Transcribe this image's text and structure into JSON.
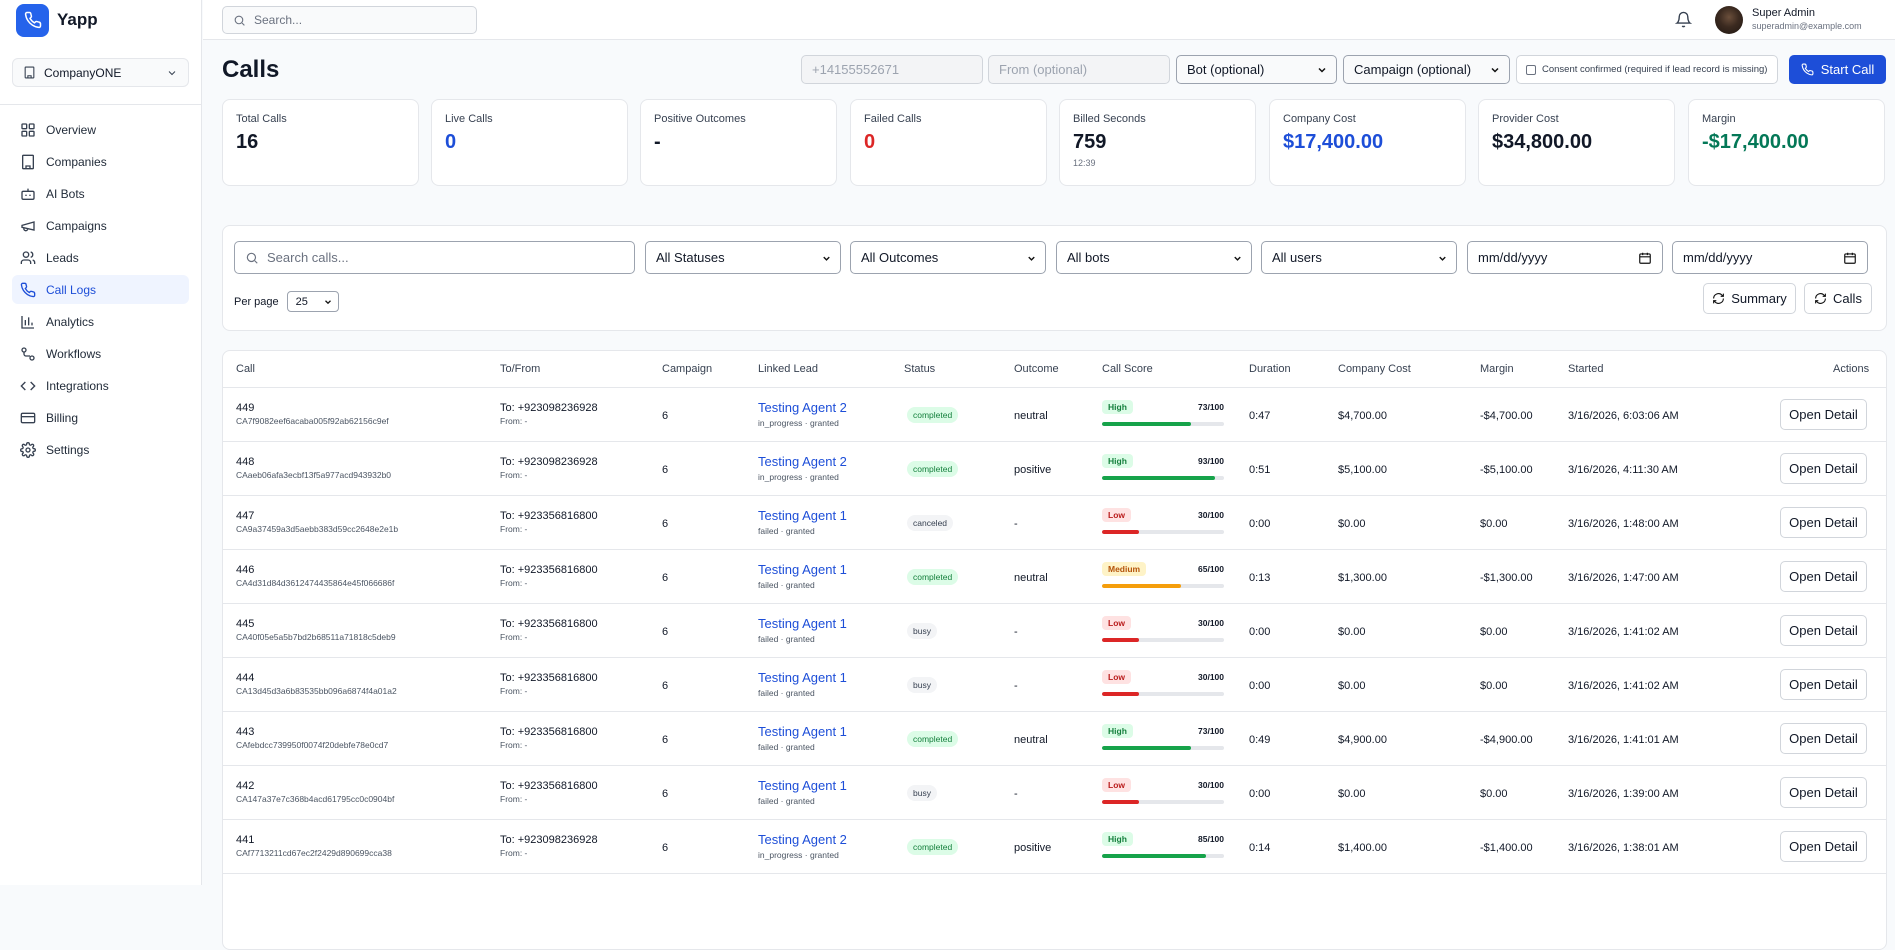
{
  "app": {
    "name": "Yapp"
  },
  "company_selector": {
    "label": "CompanyONE"
  },
  "nav": [
    {
      "label": "Overview",
      "icon": "grid-icon",
      "active": false
    },
    {
      "label": "Companies",
      "icon": "building-icon",
      "active": false
    },
    {
      "label": "AI Bots",
      "icon": "bot-icon",
      "active": false
    },
    {
      "label": "Campaigns",
      "icon": "megaphone-icon",
      "active": false
    },
    {
      "label": "Leads",
      "icon": "users-icon",
      "active": false
    },
    {
      "label": "Call Logs",
      "icon": "phone-icon",
      "active": true
    },
    {
      "label": "Analytics",
      "icon": "bar-chart-icon",
      "active": false
    },
    {
      "label": "Workflows",
      "icon": "workflow-icon",
      "active": false
    },
    {
      "label": "Integrations",
      "icon": "code-icon",
      "active": false
    },
    {
      "label": "Billing",
      "icon": "credit-card-icon",
      "active": false
    },
    {
      "label": "Settings",
      "icon": "gear-icon",
      "active": false
    }
  ],
  "topbar": {
    "search_placeholder": "Search...",
    "user_name": "Super Admin",
    "user_email": "superadmin@example.com"
  },
  "page": {
    "title": "Calls"
  },
  "call_form": {
    "phone_placeholder": "+14155552671",
    "from_placeholder": "From (optional)",
    "bot_select": "Bot (optional)",
    "campaign_select": "Campaign (optional)",
    "consent_label": "Consent confirmed (required if lead record is missing)",
    "start_label": "Start Call"
  },
  "stats": [
    {
      "label": "Total Calls",
      "value": "16",
      "sub": "",
      "color": "#111827"
    },
    {
      "label": "Live Calls",
      "value": "0",
      "sub": "",
      "color": "#1d4ed8"
    },
    {
      "label": "Positive Outcomes",
      "value": "-",
      "sub": "",
      "color": "#111827"
    },
    {
      "label": "Failed Calls",
      "value": "0",
      "sub": "",
      "color": "#dc2626"
    },
    {
      "label": "Billed Seconds",
      "value": "759",
      "sub": "12:39",
      "color": "#111827"
    },
    {
      "label": "Company Cost",
      "value": "$17,400.00",
      "sub": "",
      "color": "#1d4ed8"
    },
    {
      "label": "Provider Cost",
      "value": "$34,800.00",
      "sub": "",
      "color": "#111827"
    },
    {
      "label": "Margin",
      "value": "-$17,400.00",
      "sub": "",
      "color": "#047857"
    }
  ],
  "filters": {
    "search_placeholder": "Search calls...",
    "status": "All Statuses",
    "outcome": "All Outcomes",
    "bots": "All bots",
    "users": "All users",
    "date_from": "mm/dd/yyyy",
    "date_to": "mm/dd/yyyy",
    "per_page_label": "Per page",
    "per_page": "25",
    "summary_label": "Summary",
    "calls_label": "Calls"
  },
  "table": {
    "headers": {
      "call": "Call",
      "tofrom": "To/From",
      "campaign": "Campaign",
      "lead": "Linked Lead",
      "status": "Status",
      "outcome": "Outcome",
      "score": "Call Score",
      "duration": "Duration",
      "cost": "Company Cost",
      "margin": "Margin",
      "started": "Started",
      "actions": "Actions"
    },
    "action_label": "Open Detail",
    "rows": [
      {
        "id": "449",
        "sid": "CA7f9082eef6acaba005f92ab62156c9ef",
        "to": "To: +923098236928",
        "from": "From: -",
        "campaign": "6",
        "lead": "Testing Agent 2",
        "lead_sub": "in_progress · granted",
        "status": "completed",
        "outcome": "neutral",
        "score_label": "High",
        "score": "73/100",
        "score_value": 73,
        "duration": "0:47",
        "cost": "$4,700.00",
        "margin": "-$4,700.00",
        "started": "3/16/2026, 6:03:06 AM"
      },
      {
        "id": "448",
        "sid": "CAaeb06afa3ecbf13f5a977acd943932b0",
        "to": "To: +923098236928",
        "from": "From: -",
        "campaign": "6",
        "lead": "Testing Agent 2",
        "lead_sub": "in_progress · granted",
        "status": "completed",
        "outcome": "positive",
        "score_label": "High",
        "score": "93/100",
        "score_value": 93,
        "duration": "0:51",
        "cost": "$5,100.00",
        "margin": "-$5,100.00",
        "started": "3/16/2026, 4:11:30 AM"
      },
      {
        "id": "447",
        "sid": "CA9a37459a3d5aebb383d59cc2648e2e1b",
        "to": "To: +923356816800",
        "from": "From: -",
        "campaign": "6",
        "lead": "Testing Agent 1",
        "lead_sub": "failed · granted",
        "status": "canceled",
        "outcome": "-",
        "score_label": "Low",
        "score": "30/100",
        "score_value": 30,
        "duration": "0:00",
        "cost": "$0.00",
        "margin": "$0.00",
        "started": "3/16/2026, 1:48:00 AM"
      },
      {
        "id": "446",
        "sid": "CA4d31d84d3612474435864e45f066686f",
        "to": "To: +923356816800",
        "from": "From: -",
        "campaign": "6",
        "lead": "Testing Agent 1",
        "lead_sub": "failed · granted",
        "status": "completed",
        "outcome": "neutral",
        "score_label": "Medium",
        "score": "65/100",
        "score_value": 65,
        "duration": "0:13",
        "cost": "$1,300.00",
        "margin": "-$1,300.00",
        "started": "3/16/2026, 1:47:00 AM"
      },
      {
        "id": "445",
        "sid": "CA40f05e5a5b7bd2b68511a71818c5deb9",
        "to": "To: +923356816800",
        "from": "From: -",
        "campaign": "6",
        "lead": "Testing Agent 1",
        "lead_sub": "failed · granted",
        "status": "busy",
        "outcome": "-",
        "score_label": "Low",
        "score": "30/100",
        "score_value": 30,
        "duration": "0:00",
        "cost": "$0.00",
        "margin": "$0.00",
        "started": "3/16/2026, 1:41:02 AM"
      },
      {
        "id": "444",
        "sid": "CA13d45d3a6b83535bb096a6874f4a01a2",
        "to": "To: +923356816800",
        "from": "From: -",
        "campaign": "6",
        "lead": "Testing Agent 1",
        "lead_sub": "failed · granted",
        "status": "busy",
        "outcome": "-",
        "score_label": "Low",
        "score": "30/100",
        "score_value": 30,
        "duration": "0:00",
        "cost": "$0.00",
        "margin": "$0.00",
        "started": "3/16/2026, 1:41:02 AM"
      },
      {
        "id": "443",
        "sid": "CAfebdcc739950f0074f20debfe78e0cd7",
        "to": "To: +923356816800",
        "from": "From: -",
        "campaign": "6",
        "lead": "Testing Agent 1",
        "lead_sub": "failed · granted",
        "status": "completed",
        "outcome": "neutral",
        "score_label": "High",
        "score": "73/100",
        "score_value": 73,
        "duration": "0:49",
        "cost": "$4,900.00",
        "margin": "-$4,900.00",
        "started": "3/16/2026, 1:41:01 AM"
      },
      {
        "id": "442",
        "sid": "CA147a37e7c368b4acd61795cc0c0904bf",
        "to": "To: +923356816800",
        "from": "From: -",
        "campaign": "6",
        "lead": "Testing Agent 1",
        "lead_sub": "failed · granted",
        "status": "busy",
        "outcome": "-",
        "score_label": "Low",
        "score": "30/100",
        "score_value": 30,
        "duration": "0:00",
        "cost": "$0.00",
        "margin": "$0.00",
        "started": "3/16/2026, 1:39:00 AM"
      },
      {
        "id": "441",
        "sid": "CAf7713211cd67ec2f2429d890699cca38",
        "to": "To: +923098236928",
        "from": "From: -",
        "campaign": "6",
        "lead": "Testing Agent 2",
        "lead_sub": "in_progress · granted",
        "status": "completed",
        "outcome": "positive",
        "score_label": "High",
        "score": "85/100",
        "score_value": 85,
        "duration": "0:14",
        "cost": "$1,400.00",
        "margin": "-$1,400.00",
        "started": "3/16/2026, 1:38:01 AM"
      }
    ]
  }
}
